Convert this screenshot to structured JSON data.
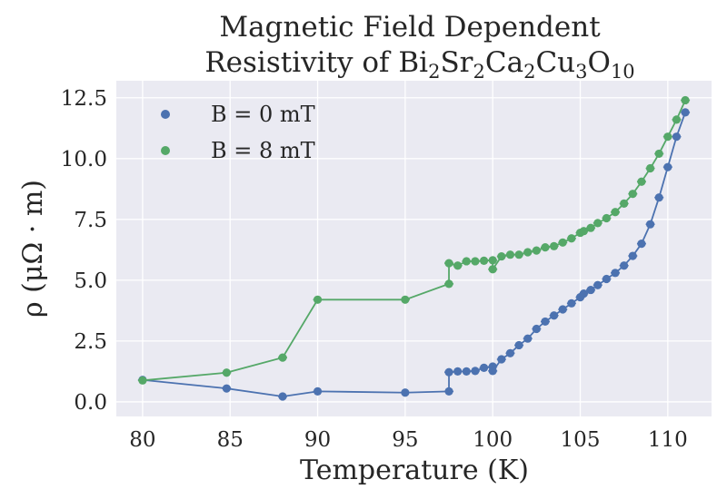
{
  "chart_data": {
    "type": "scatter",
    "title_line1": "Magnetic Field Dependent",
    "title_line2_prefix": "Resistivity of ",
    "formula_parts": [
      {
        "t": "Bi",
        "sub": false
      },
      {
        "t": "2",
        "sub": true
      },
      {
        "t": "Sr",
        "sub": false
      },
      {
        "t": "2",
        "sub": true
      },
      {
        "t": "Ca",
        "sub": false
      },
      {
        "t": "2",
        "sub": true
      },
      {
        "t": "Cu",
        "sub": false
      },
      {
        "t": "3",
        "sub": true
      },
      {
        "t": "O",
        "sub": false
      },
      {
        "t": "10",
        "sub": true
      }
    ],
    "xlabel": "Temperature (K)",
    "ylabel": "ρ (μΩ · m)",
    "xlim": [
      78.5,
      112.5
    ],
    "ylim": [
      -0.6,
      13.2
    ],
    "xticks": [
      80,
      85,
      90,
      95,
      100,
      105,
      110
    ],
    "xtick_labels": [
      "80",
      "85",
      "90",
      "95",
      "100",
      "105",
      "110"
    ],
    "yticks": [
      0.0,
      2.5,
      5.0,
      7.5,
      10.0,
      12.5
    ],
    "ytick_labels": [
      "0.0",
      "2.5",
      "5.0",
      "7.5",
      "10.0",
      "12.5"
    ],
    "grid": true,
    "legend_position": "upper-left",
    "background": "#eaeaf2",
    "series": [
      {
        "name": "B = 0 mT",
        "color": "#4c72b0",
        "x": [
          80,
          84.8,
          88,
          90,
          95,
          97.5,
          97.5,
          98,
          98.5,
          99,
          99.5,
          100,
          100,
          100.5,
          101,
          101.5,
          102,
          102.5,
          103,
          103.5,
          104,
          104.5,
          105,
          105.2,
          105.6,
          106,
          106.5,
          107,
          107.5,
          108,
          108.5,
          109,
          109.5,
          110,
          110.5,
          111
        ],
        "y": [
          0.9,
          0.55,
          0.22,
          0.43,
          0.38,
          0.43,
          1.22,
          1.25,
          1.25,
          1.27,
          1.4,
          1.45,
          1.27,
          1.75,
          2.0,
          2.33,
          2.6,
          3.0,
          3.3,
          3.55,
          3.8,
          4.05,
          4.3,
          4.45,
          4.6,
          4.8,
          5.05,
          5.3,
          5.6,
          6.0,
          6.5,
          7.3,
          8.4,
          9.65,
          10.9,
          11.9
        ]
      },
      {
        "name": "B = 8 mT",
        "color": "#55a868",
        "x": [
          80,
          84.8,
          88,
          90,
          95,
          97.5,
          97.5,
          98,
          98.5,
          99,
          99.5,
          100,
          100,
          100.5,
          101,
          101.5,
          102,
          102.5,
          103,
          103.5,
          104,
          104.5,
          105,
          105.2,
          105.6,
          106,
          106.5,
          107,
          107.5,
          108,
          108.5,
          109,
          109.5,
          110,
          110.5,
          111
        ],
        "y": [
          0.88,
          1.2,
          1.82,
          4.2,
          4.2,
          4.85,
          5.7,
          5.6,
          5.78,
          5.78,
          5.8,
          5.82,
          5.45,
          5.98,
          6.05,
          6.05,
          6.15,
          6.22,
          6.35,
          6.4,
          6.55,
          6.72,
          6.95,
          7.02,
          7.15,
          7.35,
          7.55,
          7.8,
          8.15,
          8.55,
          9.05,
          9.6,
          10.2,
          10.9,
          11.6,
          12.4
        ]
      }
    ]
  }
}
